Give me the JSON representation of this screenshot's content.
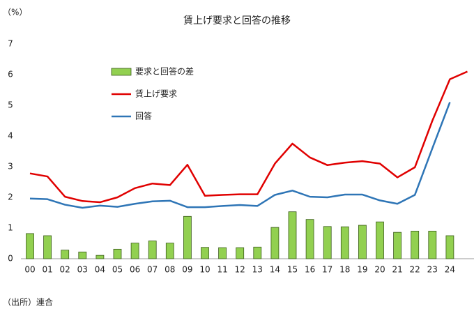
{
  "chart_data": {
    "type": "bar",
    "title": "賃上げ要求と回答の推移",
    "y_unit": "（%）",
    "source": "（出所）連合",
    "categories": [
      "00",
      "01",
      "02",
      "03",
      "04",
      "05",
      "06",
      "07",
      "08",
      "09",
      "10",
      "11",
      "12",
      "13",
      "14",
      "15",
      "16",
      "17",
      "18",
      "19",
      "20",
      "21",
      "22",
      "23",
      "24",
      null
    ],
    "series": [
      {
        "name": "要求と回答の差",
        "type": "bar",
        "color": "#92d050",
        "values": [
          0.82,
          0.75,
          0.28,
          0.22,
          0.11,
          0.31,
          0.51,
          0.58,
          0.51,
          1.38,
          0.37,
          0.36,
          0.36,
          0.38,
          1.02,
          1.53,
          1.28,
          1.05,
          1.04,
          1.09,
          1.2,
          0.86,
          0.9,
          0.9,
          0.75,
          null
        ]
      },
      {
        "name": "賃上げ要求",
        "type": "line",
        "color": "#e00000",
        "values": [
          2.78,
          2.68,
          2.02,
          1.88,
          1.84,
          2.0,
          2.3,
          2.45,
          2.4,
          3.06,
          2.05,
          2.08,
          2.1,
          2.1,
          3.1,
          3.75,
          3.3,
          3.05,
          3.13,
          3.18,
          3.1,
          2.65,
          2.98,
          4.5,
          5.85,
          6.1
        ]
      },
      {
        "name": "回答",
        "type": "line",
        "color": "#2e75b6",
        "values": [
          1.96,
          1.94,
          1.76,
          1.66,
          1.73,
          1.69,
          1.79,
          1.87,
          1.89,
          1.68,
          1.68,
          1.72,
          1.75,
          1.72,
          2.08,
          2.22,
          2.02,
          2.0,
          2.09,
          2.09,
          1.9,
          1.79,
          2.08,
          3.6,
          5.1,
          null
        ]
      }
    ],
    "ylim": [
      0,
      7
    ],
    "yticks": [
      0,
      1,
      2,
      3,
      4,
      5,
      6,
      7
    ],
    "grid": false
  }
}
